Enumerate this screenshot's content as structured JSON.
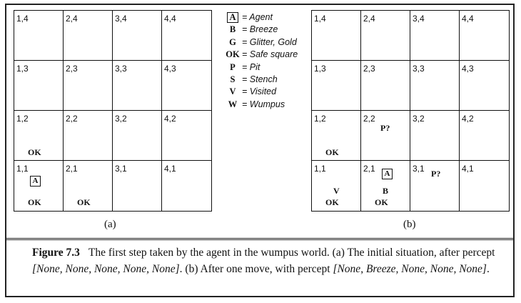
{
  "grid_a": {
    "label": "(a)",
    "cells": [
      {
        "coord": "1,4",
        "marks": []
      },
      {
        "coord": "2,4",
        "marks": []
      },
      {
        "coord": "3,4",
        "marks": []
      },
      {
        "coord": "4,4",
        "marks": []
      },
      {
        "coord": "1,3",
        "marks": []
      },
      {
        "coord": "2,3",
        "marks": []
      },
      {
        "coord": "3,3",
        "marks": []
      },
      {
        "coord": "4,3",
        "marks": []
      },
      {
        "coord": "1,2",
        "marks": [
          {
            "text": "OK",
            "pos": "bottom"
          }
        ]
      },
      {
        "coord": "2,2",
        "marks": []
      },
      {
        "coord": "3,2",
        "marks": []
      },
      {
        "coord": "4,2",
        "marks": []
      },
      {
        "coord": "1,1",
        "marks": [
          {
            "text": "A",
            "pos": "agent"
          },
          {
            "text": "OK",
            "pos": "bottom"
          }
        ]
      },
      {
        "coord": "2,1",
        "marks": [
          {
            "text": "OK",
            "pos": "bottom"
          }
        ]
      },
      {
        "coord": "3,1",
        "marks": []
      },
      {
        "coord": "4,1",
        "marks": []
      }
    ]
  },
  "grid_b": {
    "label": "(b)",
    "cells": [
      {
        "coord": "1,4",
        "marks": []
      },
      {
        "coord": "2,4",
        "marks": []
      },
      {
        "coord": "3,4",
        "marks": []
      },
      {
        "coord": "4,4",
        "marks": []
      },
      {
        "coord": "1,3",
        "marks": []
      },
      {
        "coord": "2,3",
        "marks": []
      },
      {
        "coord": "3,3",
        "marks": []
      },
      {
        "coord": "4,3",
        "marks": []
      },
      {
        "coord": "1,2",
        "marks": [
          {
            "text": "OK",
            "pos": "bottom"
          }
        ]
      },
      {
        "coord": "2,2",
        "marks": [
          {
            "text": "P?",
            "pos": "pit-left"
          }
        ]
      },
      {
        "coord": "3,2",
        "marks": []
      },
      {
        "coord": "4,2",
        "marks": []
      },
      {
        "coord": "1,1",
        "marks": [
          {
            "text": "V",
            "pos": "mid"
          },
          {
            "text": "OK",
            "pos": "bottom"
          }
        ]
      },
      {
        "coord": "2,1",
        "marks": [
          {
            "text": "A",
            "pos": "agent-b"
          },
          {
            "text": "B",
            "pos": "mid"
          },
          {
            "text": "OK",
            "pos": "bottom"
          }
        ]
      },
      {
        "coord": "3,1",
        "marks": [
          {
            "text": "P?",
            "pos": "pit-right"
          }
        ]
      },
      {
        "coord": "4,1",
        "marks": []
      }
    ]
  },
  "legend": [
    {
      "symbol": "A",
      "boxed": true,
      "meaning": "= Agent"
    },
    {
      "symbol": "B",
      "boxed": false,
      "meaning": "= Breeze"
    },
    {
      "symbol": "G",
      "boxed": false,
      "meaning": "= Glitter, Gold"
    },
    {
      "symbol": "OK",
      "boxed": false,
      "meaning": "= Safe square"
    },
    {
      "symbol": "P",
      "boxed": false,
      "meaning": "= Pit"
    },
    {
      "symbol": "S",
      "boxed": false,
      "meaning": "= Stench"
    },
    {
      "symbol": "V",
      "boxed": false,
      "meaning": "= Visited"
    },
    {
      "symbol": "W",
      "boxed": false,
      "meaning": "= Wumpus"
    }
  ],
  "caption": {
    "figure": "Figure 7.3",
    "text_1": "The first step taken by the agent in the wumpus world. (a) The initial situation, after percept ",
    "percept_1": "[None, None, None, None, None]",
    "text_2": ". (b) After one move, with percept ",
    "percept_2": "[None, Breeze, None, None, None]",
    "text_3": "."
  }
}
